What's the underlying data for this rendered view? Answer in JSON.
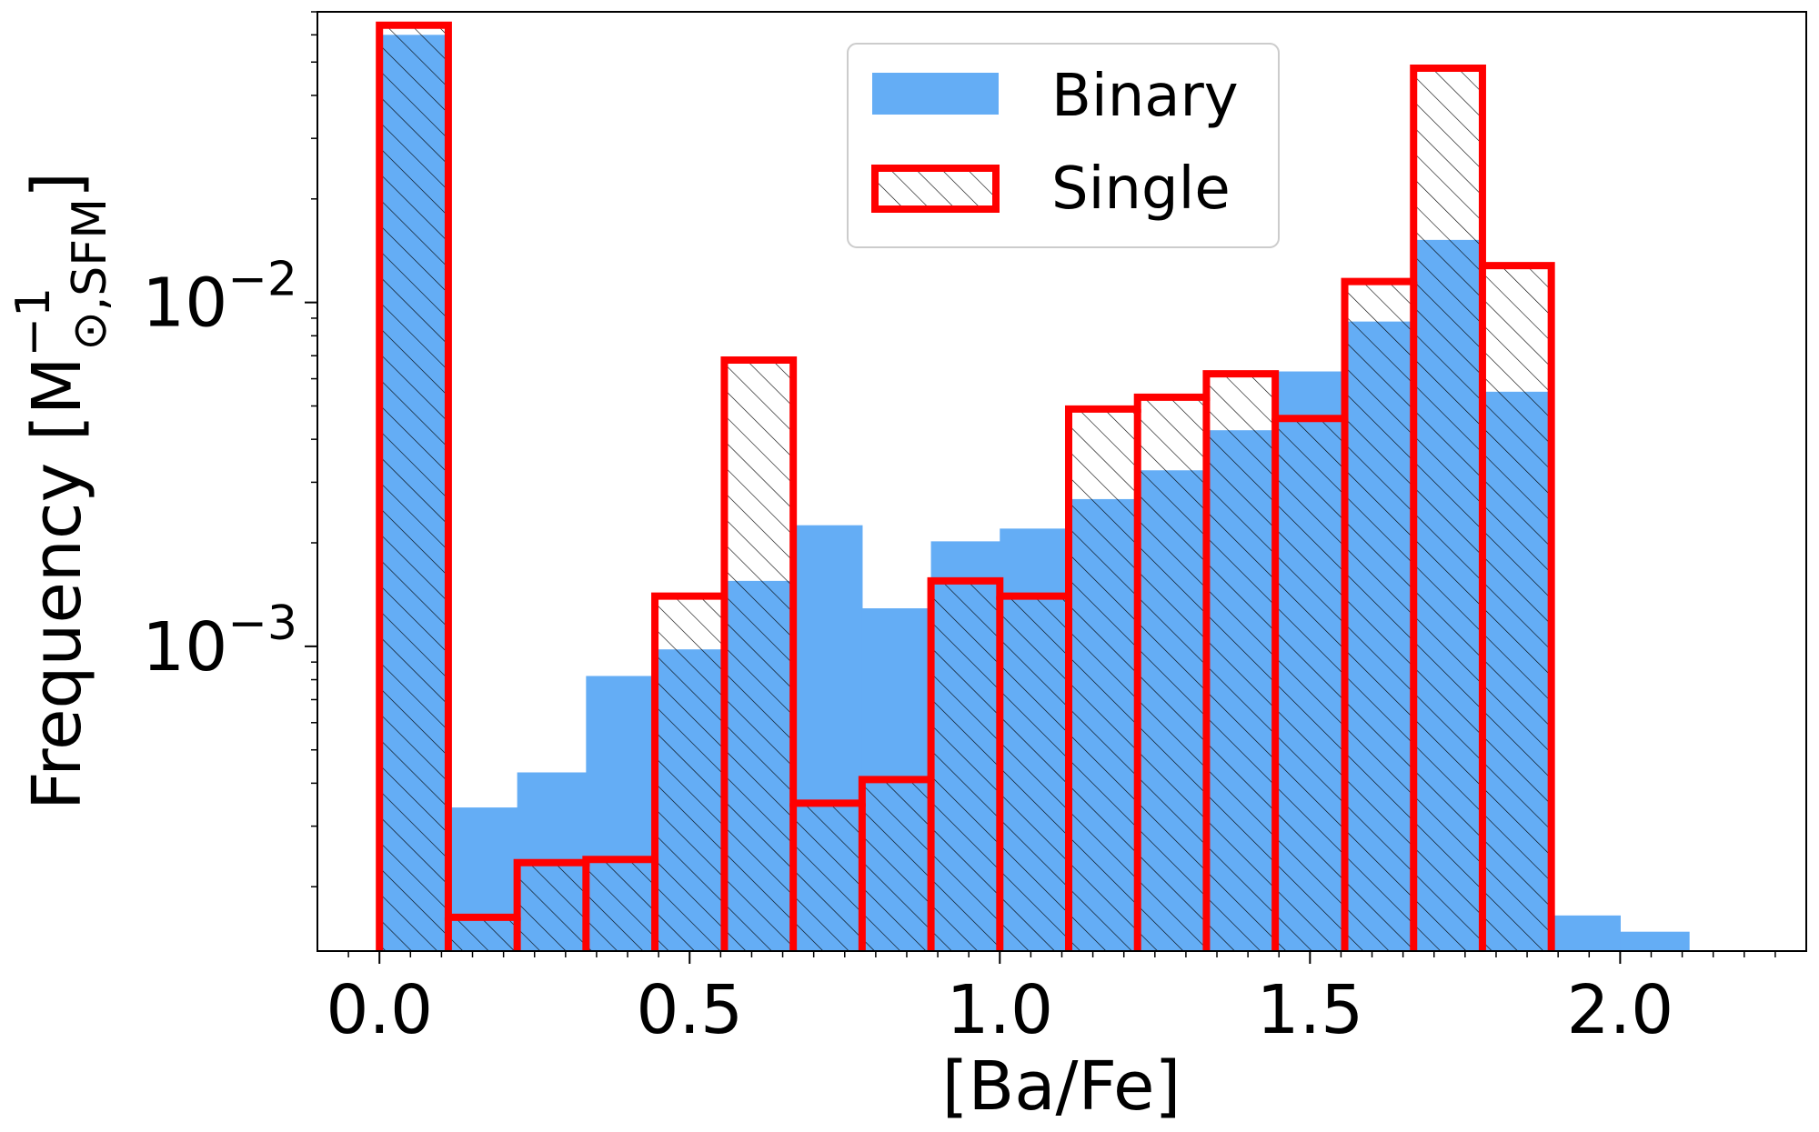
{
  "chart_data": {
    "type": "bar",
    "xlabel": "[Ba/Fe]",
    "ylabel": {
      "prefix": "Frequency [M",
      "superscript": "−1",
      "subscript": "⊙,SFM",
      "suffix": "]"
    },
    "xlim": [
      -0.1,
      2.3
    ],
    "ylim": [
      0.00013,
      0.07
    ],
    "yscale": "log",
    "xticks": [
      0.0,
      0.5,
      1.0,
      1.5,
      2.0
    ],
    "xtick_labels": [
      "0.0",
      "0.5",
      "1.0",
      "1.5",
      "2.0"
    ],
    "yticks": [
      {
        "value": 0.01,
        "base": "10",
        "exp": "−2"
      },
      {
        "value": 0.001,
        "base": "10",
        "exp": "−3"
      }
    ],
    "legend_position": "upper center",
    "bin_edges": [
      0.0,
      0.111,
      0.222,
      0.333,
      0.444,
      0.556,
      0.667,
      0.778,
      0.889,
      1.0,
      1.111,
      1.222,
      1.333,
      1.444,
      1.556,
      1.667,
      1.778,
      1.889,
      2.0,
      2.111
    ],
    "series": [
      {
        "name": "Binary",
        "style": "filled",
        "color": "#64adf5",
        "values": [
          0.06,
          0.00034,
          0.00043,
          0.00082,
          0.00098,
          0.00155,
          0.00225,
          0.00129,
          0.00202,
          0.0022,
          0.00268,
          0.00325,
          0.00425,
          0.0063,
          0.0088,
          0.0152,
          0.0055,
          0.000165,
          0.000148
        ]
      },
      {
        "name": "Single",
        "style": "step-hatched",
        "color": "#ff0000",
        "values": [
          0.064,
          0.000163,
          0.000235,
          0.00024,
          0.0014,
          0.0068,
          0.00035,
          0.00041,
          0.00155,
          0.0014,
          0.0049,
          0.0053,
          0.0062,
          0.0046,
          0.0115,
          0.048,
          0.0128,
          0,
          0
        ]
      }
    ]
  }
}
